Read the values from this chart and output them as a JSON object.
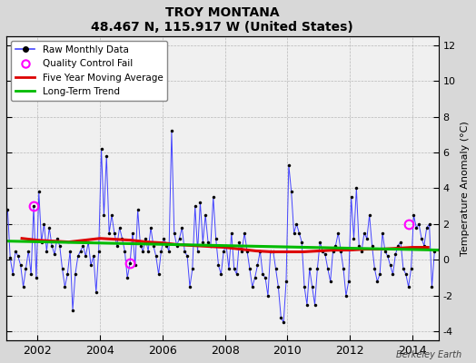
{
  "title": "TROY MONTANA",
  "subtitle": "48.467 N, 115.917 W (United States)",
  "credit": "Berkeley Earth",
  "ylabel": "Temperature Anomaly (°C)",
  "xlim": [
    2001.0,
    2014.83
  ],
  "ylim": [
    -4.5,
    12.5
  ],
  "yticks": [
    -4,
    -2,
    0,
    2,
    4,
    6,
    8,
    10,
    12
  ],
  "xticks": [
    2002,
    2004,
    2006,
    2008,
    2010,
    2012,
    2014
  ],
  "bg_color": "#d8d8d8",
  "plot_bg_color": "#f0f0f0",
  "raw_color": "#4444ff",
  "ma_color": "#dd0000",
  "trend_color": "#00bb00",
  "qc_color": "#ff00ff",
  "raw_data": {
    "dates": [
      2001.042,
      2001.125,
      2001.208,
      2001.292,
      2001.375,
      2001.458,
      2001.542,
      2001.625,
      2001.708,
      2001.792,
      2001.875,
      2001.958,
      2002.042,
      2002.125,
      2002.208,
      2002.292,
      2002.375,
      2002.458,
      2002.542,
      2002.625,
      2002.708,
      2002.792,
      2002.875,
      2002.958,
      2003.042,
      2003.125,
      2003.208,
      2003.292,
      2003.375,
      2003.458,
      2003.542,
      2003.625,
      2003.708,
      2003.792,
      2003.875,
      2003.958,
      2004.042,
      2004.125,
      2004.208,
      2004.292,
      2004.375,
      2004.458,
      2004.542,
      2004.625,
      2004.708,
      2004.792,
      2004.875,
      2004.958,
      2005.042,
      2005.125,
      2005.208,
      2005.292,
      2005.375,
      2005.458,
      2005.542,
      2005.625,
      2005.708,
      2005.792,
      2005.875,
      2005.958,
      2006.042,
      2006.125,
      2006.208,
      2006.292,
      2006.375,
      2006.458,
      2006.542,
      2006.625,
      2006.708,
      2006.792,
      2006.875,
      2006.958,
      2007.042,
      2007.125,
      2007.208,
      2007.292,
      2007.375,
      2007.458,
      2007.542,
      2007.625,
      2007.708,
      2007.792,
      2007.875,
      2007.958,
      2008.042,
      2008.125,
      2008.208,
      2008.292,
      2008.375,
      2008.458,
      2008.542,
      2008.625,
      2008.708,
      2008.792,
      2008.875,
      2008.958,
      2009.042,
      2009.125,
      2009.208,
      2009.292,
      2009.375,
      2009.458,
      2009.542,
      2009.625,
      2009.708,
      2009.792,
      2009.875,
      2009.958,
      2010.042,
      2010.125,
      2010.208,
      2010.292,
      2010.375,
      2010.458,
      2010.542,
      2010.625,
      2010.708,
      2010.792,
      2010.875,
      2010.958,
      2011.042,
      2011.125,
      2011.208,
      2011.292,
      2011.375,
      2011.458,
      2011.542,
      2011.625,
      2011.708,
      2011.792,
      2011.875,
      2011.958,
      2012.042,
      2012.125,
      2012.208,
      2012.292,
      2012.375,
      2012.458,
      2012.542,
      2012.625,
      2012.708,
      2012.792,
      2012.875,
      2012.958,
      2013.042,
      2013.125,
      2013.208,
      2013.292,
      2013.375,
      2013.458,
      2013.542,
      2013.625,
      2013.708,
      2013.792,
      2013.875,
      2013.958,
      2014.042,
      2014.125,
      2014.208,
      2014.292,
      2014.375,
      2014.458,
      2014.542,
      2014.625,
      2014.708
    ],
    "values": [
      2.8,
      0.1,
      -0.8,
      0.5,
      0.2,
      -0.3,
      -1.5,
      -0.5,
      0.5,
      -0.8,
      3.0,
      -1.0,
      3.8,
      1.0,
      2.0,
      0.5,
      1.8,
      0.8,
      0.3,
      1.2,
      0.8,
      -0.5,
      -1.5,
      -0.8,
      0.5,
      -2.8,
      -0.8,
      0.2,
      0.5,
      0.8,
      0.2,
      1.0,
      -0.3,
      0.2,
      -1.8,
      0.5,
      6.2,
      2.5,
      5.8,
      1.5,
      2.5,
      1.5,
      0.8,
      1.8,
      1.2,
      0.5,
      -1.0,
      -0.2,
      1.5,
      -0.3,
      2.8,
      0.8,
      0.5,
      1.2,
      0.5,
      1.8,
      0.8,
      0.2,
      -0.8,
      0.5,
      1.2,
      0.8,
      0.5,
      7.2,
      1.5,
      0.8,
      1.2,
      1.8,
      0.5,
      0.2,
      -1.5,
      -0.5,
      3.0,
      0.5,
      3.2,
      1.0,
      2.5,
      1.0,
      0.8,
      3.5,
      1.2,
      -0.3,
      -0.8,
      0.5,
      0.8,
      -0.5,
      1.5,
      -0.5,
      -0.8,
      1.0,
      0.5,
      1.5,
      0.5,
      -0.5,
      -1.5,
      -1.0,
      -0.3,
      0.5,
      -0.8,
      -1.0,
      -2.0,
      0.5,
      0.5,
      -0.5,
      -1.5,
      -3.2,
      -3.5,
      -1.2,
      5.3,
      3.8,
      1.5,
      2.0,
      1.5,
      1.0,
      -1.5,
      -2.5,
      -0.5,
      -1.5,
      -2.5,
      -0.5,
      1.0,
      0.5,
      0.3,
      -0.5,
      -1.2,
      0.5,
      0.8,
      1.5,
      0.5,
      -0.5,
      -2.0,
      -1.2,
      3.5,
      1.2,
      4.0,
      0.8,
      0.5,
      1.5,
      1.2,
      2.5,
      0.8,
      -0.5,
      -1.2,
      -0.8,
      1.5,
      0.5,
      0.2,
      -0.3,
      -0.8,
      0.3,
      0.8,
      1.0,
      -0.5,
      -0.8,
      -1.5,
      -0.5,
      2.5,
      1.8,
      2.0,
      1.2,
      0.8,
      1.8,
      2.0,
      -1.5,
      0.5
    ]
  },
  "qc_fails": [
    {
      "date": 2001.875,
      "value": 3.0
    },
    {
      "date": 2004.958,
      "value": -0.2
    },
    {
      "date": 2013.875,
      "value": 2.0
    }
  ],
  "moving_avg": {
    "dates": [
      2001.5,
      2002.0,
      2002.5,
      2003.0,
      2003.5,
      2004.0,
      2004.5,
      2005.0,
      2005.5,
      2006.0,
      2006.5,
      2007.0,
      2007.5,
      2008.0,
      2008.5,
      2009.0,
      2009.5,
      2010.0,
      2010.5,
      2011.0,
      2011.5,
      2012.0,
      2012.5,
      2013.0,
      2013.5,
      2014.0,
      2014.5
    ],
    "values": [
      1.2,
      1.1,
      1.05,
      1.0,
      1.1,
      1.2,
      1.15,
      1.1,
      1.0,
      0.95,
      0.85,
      0.8,
      0.75,
      0.7,
      0.6,
      0.5,
      0.45,
      0.45,
      0.45,
      0.5,
      0.55,
      0.55,
      0.6,
      0.6,
      0.65,
      0.7,
      0.7
    ]
  },
  "trend": {
    "dates": [
      2001.0,
      2014.83
    ],
    "values": [
      1.05,
      0.55
    ]
  }
}
